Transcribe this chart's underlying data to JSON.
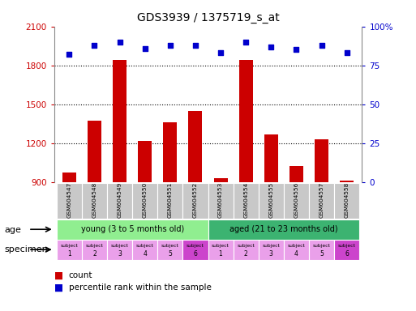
{
  "title": "GDS3939 / 1375719_s_at",
  "samples": [
    "GSM604547",
    "GSM604548",
    "GSM604549",
    "GSM604550",
    "GSM604551",
    "GSM604552",
    "GSM604553",
    "GSM604554",
    "GSM604555",
    "GSM604556",
    "GSM604557",
    "GSM604558"
  ],
  "count_values": [
    970,
    1370,
    1840,
    1215,
    1360,
    1450,
    930,
    1840,
    1265,
    1020,
    1230,
    910
  ],
  "percentile_values": [
    82,
    88,
    90,
    86,
    88,
    88,
    83,
    90,
    87,
    85,
    88,
    83
  ],
  "ylim_left": [
    900,
    2100
  ],
  "ylim_right": [
    0,
    100
  ],
  "yticks_left": [
    900,
    1200,
    1500,
    1800,
    2100
  ],
  "yticks_right": [
    0,
    25,
    50,
    75,
    100
  ],
  "ytick_right_labels": [
    "0",
    "25",
    "50",
    "75",
    "100%"
  ],
  "age_groups": [
    {
      "label": "young (3 to 5 months old)",
      "start": 0,
      "end": 6,
      "color": "#90EE90"
    },
    {
      "label": "aged (21 to 23 months old)",
      "start": 6,
      "end": 12,
      "color": "#3CB371"
    }
  ],
  "specimen_colors": [
    "#EAA0EA",
    "#EAA0EA",
    "#EAA0EA",
    "#EAA0EA",
    "#EAA0EA",
    "#CC44CC",
    "#EAA0EA",
    "#EAA0EA",
    "#EAA0EA",
    "#EAA0EA",
    "#EAA0EA",
    "#CC44CC"
  ],
  "specimen_numbers": [
    1,
    2,
    3,
    4,
    5,
    6,
    1,
    2,
    3,
    4,
    5,
    6
  ],
  "bar_color": "#CC0000",
  "dot_color": "#0000CC",
  "left_tick_color": "#CC0000",
  "right_tick_color": "#0000CC",
  "xticklabel_bg": "#C8C8C8",
  "grid_color": "#000000",
  "bg_color": "#FFFFFF"
}
